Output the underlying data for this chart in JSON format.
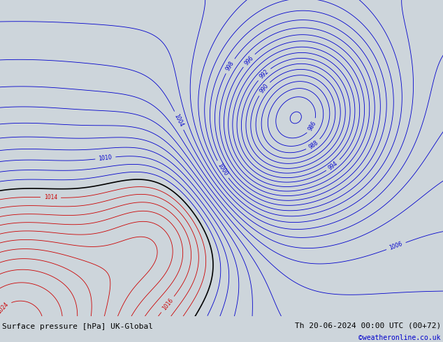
{
  "title_left": "Surface pressure [hPa] UK-Global",
  "title_right": "Th 20-06-2024 00:00 UTC (00+72)",
  "credit": "©weatheronline.co.uk",
  "bg_color": "#cdd5db",
  "land_color": "#c8e8b0",
  "sea_color": "#cdd5db",
  "fig_width": 6.34,
  "fig_height": 4.9,
  "dpi": 100,
  "contour_blue_color": "#0000cc",
  "contour_red_color": "#cc0000",
  "contour_black_color": "#000000",
  "footer_bg": "#dcdcdc",
  "label_fontsize": 5.5,
  "footer_fontsize": 8,
  "credit_fontsize": 7,
  "credit_color": "#0000cc",
  "lon_min": -28,
  "lon_max": 45,
  "lat_min": 44,
  "lat_max": 77
}
